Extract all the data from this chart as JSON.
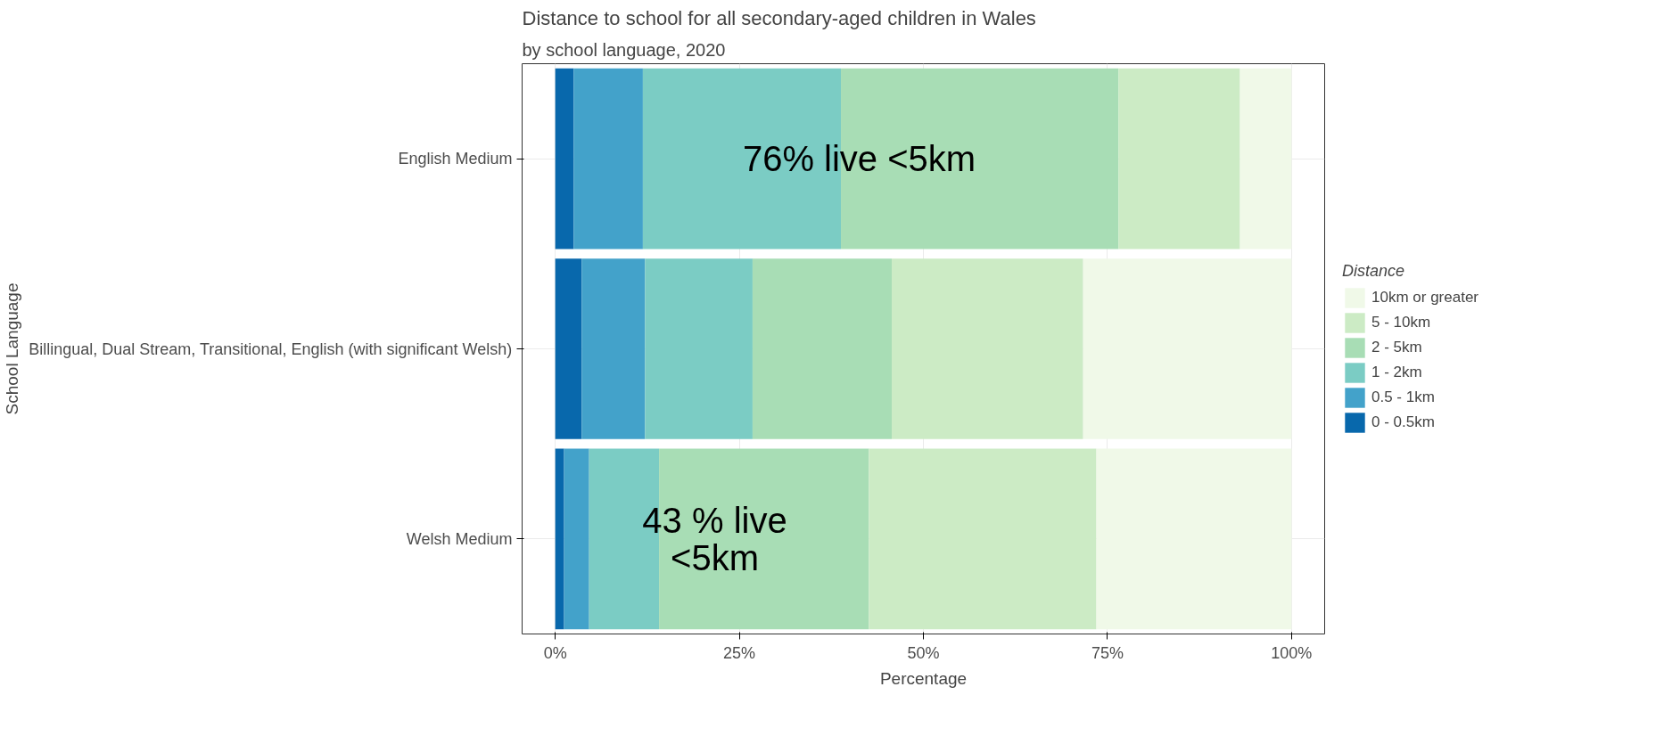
{
  "chart_data": {
    "type": "bar",
    "orientation": "horizontal",
    "stacked": true,
    "title": "Distance to school for all secondary-aged children in Wales",
    "subtitle": "by school language, 2020",
    "xlabel": "Percentage",
    "ylabel": "School Language",
    "legend_title": "Distance",
    "categories": [
      "English Medium",
      "Billingual, Dual Stream, Transitional, English (with significant Welsh)",
      "Welsh Medium"
    ],
    "series": [
      {
        "name": "0 - 0.5km",
        "color": "#0868ac",
        "values": [
          2.5,
          3.6,
          1.2
        ]
      },
      {
        "name": "0.5 - 1km",
        "color": "#43a2ca",
        "values": [
          9.4,
          8.6,
          3.4
        ]
      },
      {
        "name": "1 - 2km",
        "color": "#7bccc4",
        "values": [
          26.9,
          14.6,
          9.5
        ]
      },
      {
        "name": "2 - 5km",
        "color": "#a8ddb5",
        "values": [
          37.7,
          18.9,
          28.5
        ]
      },
      {
        "name": "5 - 10km",
        "color": "#ccebc5",
        "values": [
          16.5,
          26.0,
          30.9
        ]
      },
      {
        "name": "10km or greater",
        "color": "#f0f9e8",
        "values": [
          7.0,
          28.3,
          26.5
        ]
      }
    ],
    "xlim": [
      -4.5,
      104.5
    ],
    "xticks": [
      {
        "value": 0,
        "label": "0%"
      },
      {
        "value": 25,
        "label": "25%"
      },
      {
        "value": 50,
        "label": "50%"
      },
      {
        "value": 75,
        "label": "75%"
      },
      {
        "value": 100,
        "label": "100%"
      }
    ],
    "annotations": [
      "76% live <5km",
      "43 % live\n<5km"
    ],
    "grid": true,
    "legend": "right"
  }
}
